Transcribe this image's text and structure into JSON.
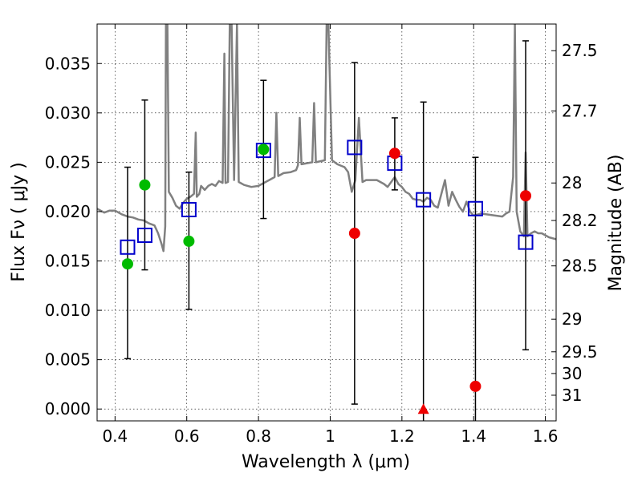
{
  "chart_data": {
    "type": "scatter",
    "title": "",
    "xlabel": "Wavelength  λ (μm)",
    "ylabel_left": "Flux  Fν  ( μJy )",
    "ylabel_right": "Magnitude (AB)",
    "xlim": [
      0.35,
      1.63
    ],
    "ylim": [
      -0.0012,
      0.039
    ],
    "x_ticks": [
      0.4,
      0.6,
      0.8,
      1.0,
      1.2,
      1.4,
      1.6
    ],
    "x_tick_labels": [
      "0.4",
      "0.6",
      "0.8",
      "1",
      "1.2",
      "1.4",
      "1.6"
    ],
    "y_ticks": [
      0.0,
      0.005,
      0.01,
      0.015,
      0.02,
      0.025,
      0.03,
      0.035
    ],
    "y_tick_labels": [
      "0.000",
      "0.005",
      "0.010",
      "0.015",
      "0.020",
      "0.025",
      "0.030",
      "0.035"
    ],
    "right_ticks": [
      {
        "flux": 0.0363,
        "label": "27.5"
      },
      {
        "flux": 0.0302,
        "label": "27.7"
      },
      {
        "flux": 0.0229,
        "label": "28"
      },
      {
        "flux": 0.0191,
        "label": "28.2"
      },
      {
        "flux": 0.0145,
        "label": "28.5"
      },
      {
        "flux": 0.0091,
        "label": "29"
      },
      {
        "flux": 0.0058,
        "label": "29.5"
      },
      {
        "flux": 0.0036,
        "label": "30"
      },
      {
        "flux": 0.0014,
        "label": "31"
      }
    ],
    "grid": true,
    "series": [
      {
        "name": "model_sed",
        "kind": "line",
        "color": "#808080",
        "points": [
          [
            0.35,
            0.0203
          ],
          [
            0.37,
            0.0199
          ],
          [
            0.385,
            0.0201
          ],
          [
            0.4,
            0.0201
          ],
          [
            0.41,
            0.0199
          ],
          [
            0.42,
            0.0197
          ],
          [
            0.435,
            0.0195
          ],
          [
            0.45,
            0.0194
          ],
          [
            0.465,
            0.0192
          ],
          [
            0.48,
            0.0191
          ],
          [
            0.495,
            0.0188
          ],
          [
            0.51,
            0.0186
          ],
          [
            0.52,
            0.0178
          ],
          [
            0.53,
            0.0167
          ],
          [
            0.535,
            0.016
          ],
          [
            0.54,
            0.0185
          ],
          [
            0.542,
            0.039
          ],
          [
            0.546,
            0.039
          ],
          [
            0.55,
            0.022
          ],
          [
            0.56,
            0.0214
          ],
          [
            0.57,
            0.0206
          ],
          [
            0.58,
            0.0203
          ],
          [
            0.59,
            0.0209
          ],
          [
            0.6,
            0.0213
          ],
          [
            0.61,
            0.0215
          ],
          [
            0.62,
            0.0218
          ],
          [
            0.625,
            0.028
          ],
          [
            0.628,
            0.0215
          ],
          [
            0.635,
            0.0218
          ],
          [
            0.64,
            0.0226
          ],
          [
            0.65,
            0.0222
          ],
          [
            0.66,
            0.0226
          ],
          [
            0.67,
            0.0228
          ],
          [
            0.68,
            0.0226
          ],
          [
            0.69,
            0.0231
          ],
          [
            0.7,
            0.0229
          ],
          [
            0.705,
            0.036
          ],
          [
            0.708,
            0.0229
          ],
          [
            0.715,
            0.023
          ],
          [
            0.72,
            0.039
          ],
          [
            0.725,
            0.039
          ],
          [
            0.732,
            0.0232
          ],
          [
            0.74,
            0.039
          ],
          [
            0.745,
            0.023
          ],
          [
            0.76,
            0.0227
          ],
          [
            0.78,
            0.0225
          ],
          [
            0.8,
            0.0226
          ],
          [
            0.82,
            0.023
          ],
          [
            0.83,
            0.0232
          ],
          [
            0.845,
            0.0235
          ],
          [
            0.85,
            0.03
          ],
          [
            0.855,
            0.0236
          ],
          [
            0.87,
            0.0239
          ],
          [
            0.89,
            0.024
          ],
          [
            0.905,
            0.0242
          ],
          [
            0.91,
            0.0247
          ],
          [
            0.915,
            0.0295
          ],
          [
            0.92,
            0.0248
          ],
          [
            0.935,
            0.0249
          ],
          [
            0.95,
            0.025
          ],
          [
            0.955,
            0.031
          ],
          [
            0.96,
            0.025
          ],
          [
            0.985,
            0.0252
          ],
          [
            0.99,
            0.039
          ],
          [
            0.995,
            0.039
          ],
          [
            1.005,
            0.0252
          ],
          [
            1.02,
            0.0248
          ],
          [
            1.04,
            0.0245
          ],
          [
            1.05,
            0.024
          ],
          [
            1.06,
            0.022
          ],
          [
            1.07,
            0.0232
          ],
          [
            1.08,
            0.0295
          ],
          [
            1.09,
            0.023
          ],
          [
            1.1,
            0.0232
          ],
          [
            1.11,
            0.0232
          ],
          [
            1.13,
            0.0232
          ],
          [
            1.15,
            0.0228
          ],
          [
            1.16,
            0.0225
          ],
          [
            1.18,
            0.0235
          ],
          [
            1.19,
            0.0228
          ],
          [
            1.2,
            0.0225
          ],
          [
            1.21,
            0.022
          ],
          [
            1.22,
            0.0218
          ],
          [
            1.23,
            0.0213
          ],
          [
            1.24,
            0.0212
          ],
          [
            1.25,
            0.0212
          ],
          [
            1.26,
            0.021
          ],
          [
            1.27,
            0.0214
          ],
          [
            1.28,
            0.0212
          ],
          [
            1.29,
            0.0206
          ],
          [
            1.3,
            0.0204
          ],
          [
            1.32,
            0.0232
          ],
          [
            1.33,
            0.0206
          ],
          [
            1.34,
            0.022
          ],
          [
            1.35,
            0.0212
          ],
          [
            1.36,
            0.0205
          ],
          [
            1.37,
            0.02
          ],
          [
            1.38,
            0.021
          ],
          [
            1.39,
            0.02
          ],
          [
            1.4,
            0.0196
          ],
          [
            1.42,
            0.0198
          ],
          [
            1.44,
            0.0197
          ],
          [
            1.46,
            0.0196
          ],
          [
            1.48,
            0.0195
          ],
          [
            1.49,
            0.0198
          ],
          [
            1.5,
            0.02
          ],
          [
            1.51,
            0.0235
          ],
          [
            1.515,
            0.039
          ],
          [
            1.52,
            0.02
          ],
          [
            1.53,
            0.018
          ],
          [
            1.54,
            0.0175
          ],
          [
            1.545,
            0.026
          ],
          [
            1.55,
            0.0175
          ],
          [
            1.56,
            0.0178
          ],
          [
            1.57,
            0.018
          ],
          [
            1.58,
            0.0178
          ],
          [
            1.59,
            0.0178
          ],
          [
            1.6,
            0.0176
          ],
          [
            1.61,
            0.0174
          ],
          [
            1.63,
            0.0172
          ]
        ]
      },
      {
        "name": "model_bandpass",
        "kind": "open_square",
        "color": "#0000cc",
        "points": [
          [
            0.435,
            0.0164
          ],
          [
            0.483,
            0.0176
          ],
          [
            0.606,
            0.0202
          ],
          [
            0.814,
            0.0262
          ],
          [
            1.068,
            0.0265
          ],
          [
            1.18,
            0.0249
          ],
          [
            1.26,
            0.0212
          ],
          [
            1.405,
            0.0203
          ],
          [
            1.545,
            0.0169
          ]
        ]
      },
      {
        "name": "hst_acs_detections",
        "kind": "filled_circle",
        "color": "#00bb00",
        "points": [
          {
            "x": 0.435,
            "y": 0.0147,
            "ylow": 0.0051,
            "yhigh": 0.0245
          },
          {
            "x": 0.483,
            "y": 0.0227,
            "ylow": 0.0141,
            "yhigh": 0.0313
          },
          {
            "x": 0.606,
            "y": 0.017,
            "ylow": 0.0101,
            "yhigh": 0.024
          },
          {
            "x": 0.814,
            "y": 0.0263,
            "ylow": 0.0193,
            "yhigh": 0.0333
          }
        ]
      },
      {
        "name": "nir_measurements",
        "kind": "filled_circle",
        "color": "#ee0000",
        "points": [
          {
            "x": 1.068,
            "y": 0.0178,
            "ylow": 0.0005,
            "yhigh": 0.0351
          },
          {
            "x": 1.18,
            "y": 0.0259,
            "ylow": 0.0222,
            "yhigh": 0.0295
          },
          {
            "x": 1.405,
            "y": 0.0023,
            "ylow": -0.0015,
            "yhigh": 0.0255
          },
          {
            "x": 1.545,
            "y": 0.0216,
            "ylow": 0.006,
            "yhigh": 0.0373
          }
        ]
      },
      {
        "name": "upper_limit",
        "kind": "triangle",
        "color": "#ee0000",
        "points": [
          {
            "x": 1.26,
            "y": 0.0,
            "ylow": -0.0015,
            "yhigh": 0.0311
          }
        ]
      }
    ]
  }
}
